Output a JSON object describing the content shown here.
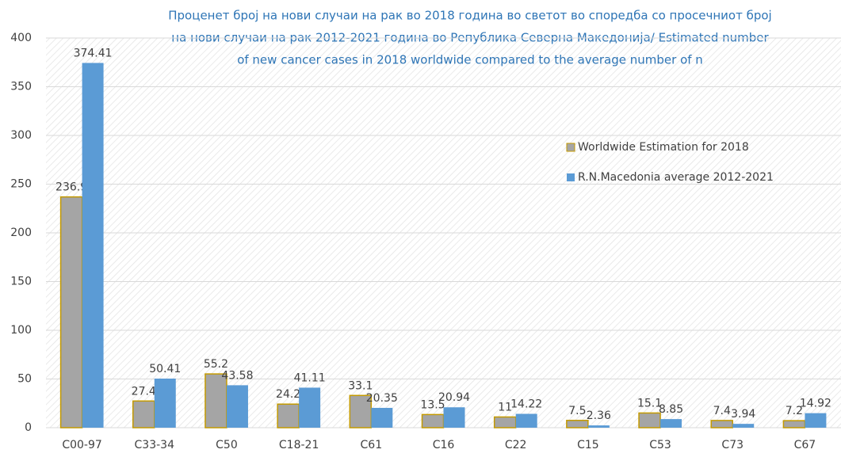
{
  "chart_data": {
    "type": "bar",
    "title": [
      "Проценет број на нови случаи на рак во 2018 година во светот во споредба со просечниот број",
      "на нови случаи на рак 2012-2021 година во Република Северна Македонија/ Estimated number",
      "of new cancer cases in 2018 worldwide  compared to the average number of n"
    ],
    "categories": [
      "C00-97",
      "C33-34",
      "C50",
      "C18-21",
      "C61",
      "C16",
      "C22",
      "C15",
      "C53",
      "C73",
      "C67"
    ],
    "series": [
      {
        "name": "Worldwide Estimation for 2018",
        "color": "#a5a5a5",
        "values": [
          236.9,
          27.4,
          55.2,
          24.2,
          33.1,
          13.5,
          11,
          7.5,
          15.1,
          7.4,
          7.2
        ]
      },
      {
        "name": "R.N.Macedonia average 2012-2021",
        "color": "#5b9bd5",
        "values": [
          374.41,
          50.41,
          43.58,
          41.11,
          20.35,
          20.94,
          14.22,
          2.36,
          8.85,
          3.94,
          14.92
        ]
      }
    ],
    "ylim": [
      0,
      400
    ],
    "yticks": [
      0,
      50,
      100,
      150,
      200,
      250,
      300,
      350,
      400
    ],
    "grid": true
  }
}
